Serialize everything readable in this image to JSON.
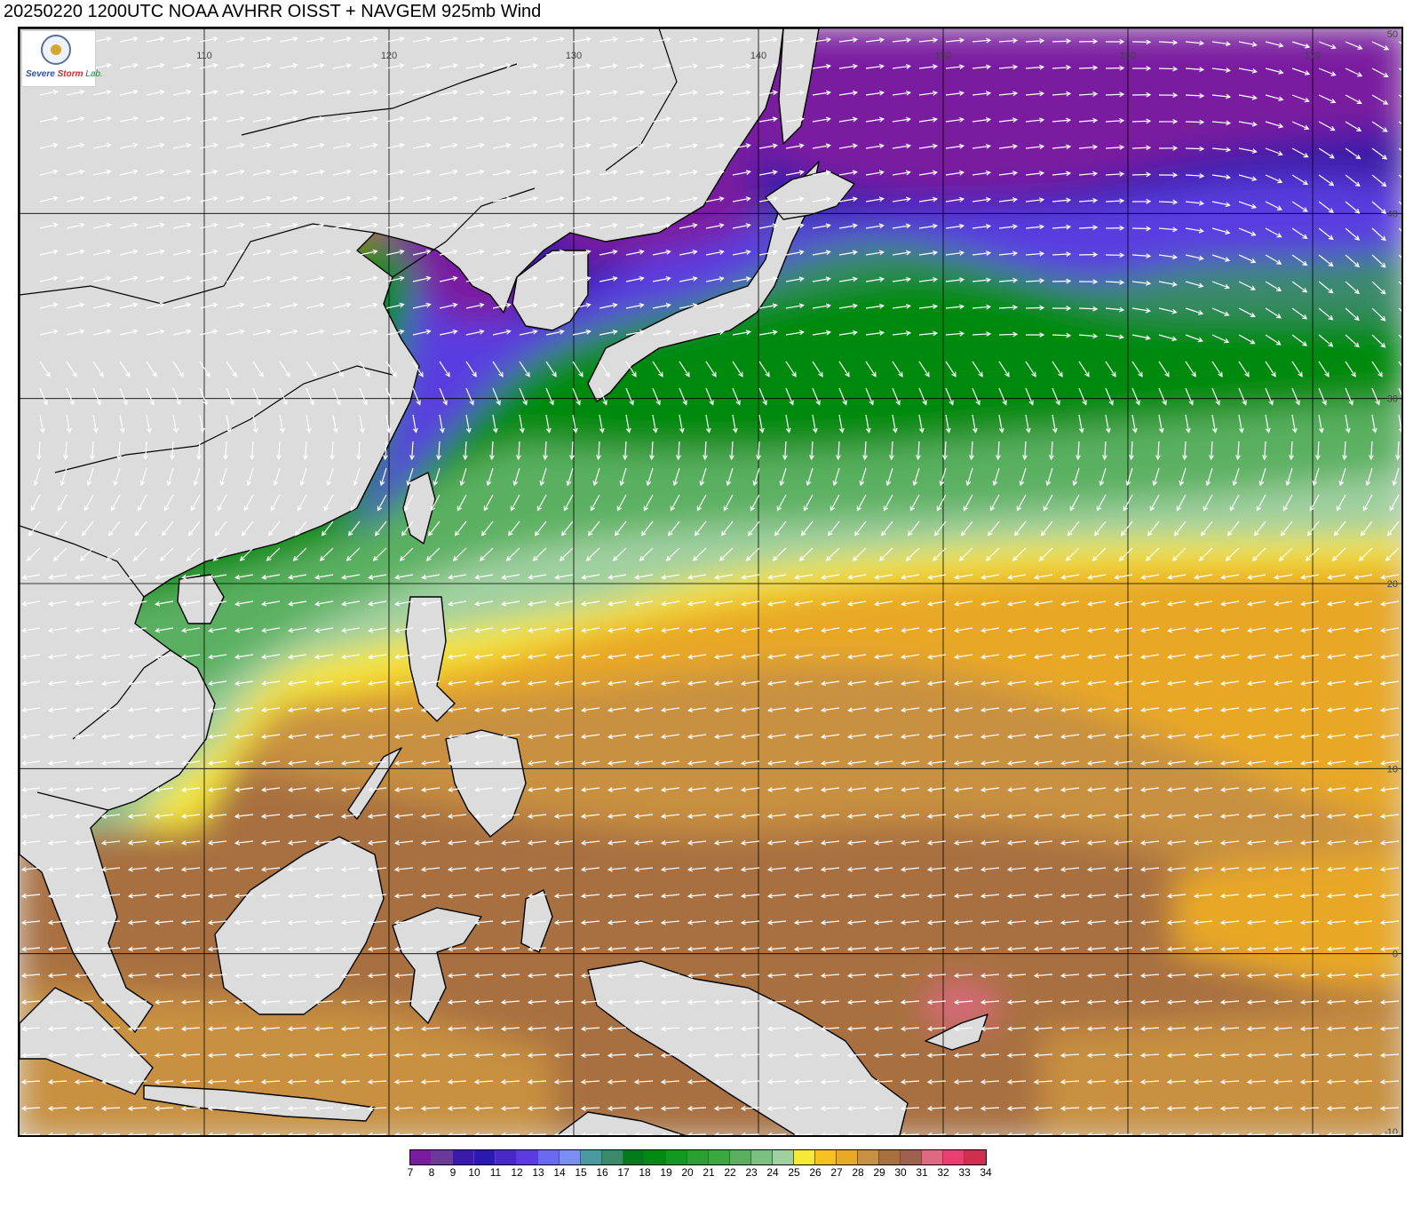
{
  "title": "20250220 1200UTC NOAA AVHRR OISST + NAVGEM 925mb Wind",
  "logo": {
    "line1": "Severe",
    "line2": "Storm",
    "line3": "Lab."
  },
  "map": {
    "lon_range": [
      100,
      175
    ],
    "lat_range": [
      -10,
      50
    ],
    "lon_ticks": [
      "110",
      "120",
      "130",
      "140",
      "150",
      "160",
      "170"
    ],
    "lat_ticks": [
      "50",
      "40",
      "30",
      "20",
      "10",
      "0",
      "-10"
    ],
    "land_color": "#dcdcdc",
    "coastline_color": "#000000",
    "wind_arrow_color": "#ffffff"
  },
  "colorbar": {
    "unit_label": "",
    "labels": [
      "7",
      "8",
      "9",
      "10",
      "11",
      "12",
      "13",
      "14",
      "15",
      "16",
      "17",
      "18",
      "19",
      "20",
      "21",
      "22",
      "23",
      "24",
      "25",
      "26",
      "27",
      "28",
      "29",
      "30",
      "31",
      "32",
      "33",
      "34"
    ],
    "colors": [
      "#7a1aa0",
      "#6a3a9a",
      "#3a1aa8",
      "#2a1ab0",
      "#4a28c8",
      "#5a3ce0",
      "#6a6af0",
      "#7a8ef4",
      "#4a9aa0",
      "#3a8a6a",
      "#007a1a",
      "#008a10",
      "#109a20",
      "#2aa030",
      "#3aa840",
      "#5ab060",
      "#7ac080",
      "#a0d0a0",
      "#f8e838",
      "#f8c020",
      "#e8a828",
      "#c89040",
      "#a87040",
      "#a06050",
      "#e06880",
      "#e84070",
      "#d03050"
    ]
  }
}
